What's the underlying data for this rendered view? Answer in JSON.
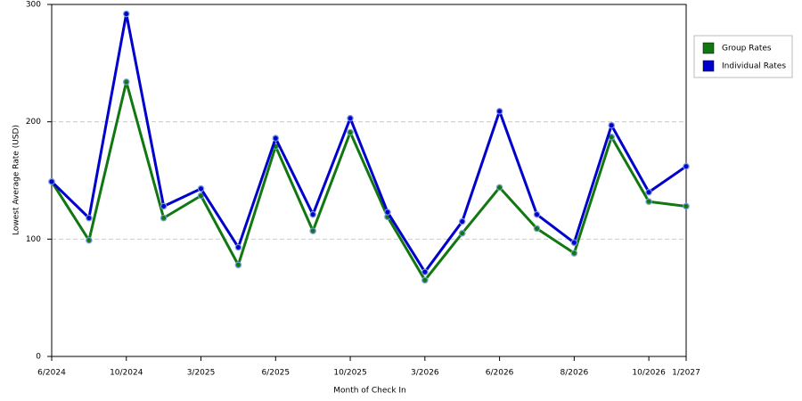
{
  "chart_data": {
    "type": "line",
    "x_label": "Month of Check In",
    "y_label": "Lowest Average Rate (USD)",
    "categories": [
      "6/2024",
      null,
      "10/2024",
      null,
      "3/2025",
      null,
      "6/2025",
      null,
      "10/2025",
      null,
      "3/2026",
      null,
      "6/2026",
      null,
      "8/2026",
      null,
      "10/2026",
      "1/2027"
    ],
    "series": [
      {
        "name": "Group Rates",
        "color": "#117711",
        "values": [
          149,
          99,
          234,
          118,
          137,
          78,
          179,
          107,
          191,
          119,
          65,
          105,
          144,
          109,
          88,
          187,
          132,
          128
        ]
      },
      {
        "name": "Individual Rates",
        "color": "#0000cc",
        "values": [
          149,
          118,
          292,
          128,
          143,
          93,
          186,
          121,
          203,
          123,
          72,
          115,
          209,
          121,
          97,
          197,
          140,
          162
        ]
      }
    ],
    "ylim": [
      0,
      300
    ],
    "yticks": [
      0,
      100,
      200,
      300
    ],
    "grid": true,
    "legend": "right"
  }
}
